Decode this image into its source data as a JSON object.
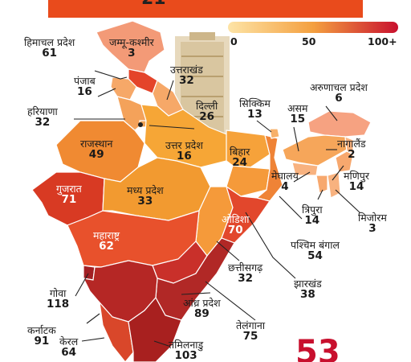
{
  "legend": {
    "ticks": [
      "0",
      "50",
      "100+"
    ],
    "color_low": "#fce3a2",
    "color_mid": "#f29b3c",
    "color_high": "#c8102e"
  },
  "states": [
    {
      "key": "himachal",
      "name": "हिमाचल प्रदेश",
      "value": "61"
    },
    {
      "key": "jk",
      "name": "जम्मू-कश्मीर",
      "value": "3"
    },
    {
      "key": "punjab",
      "name": "पंजाब",
      "value": "16"
    },
    {
      "key": "uttarakhand",
      "name": "उत्तराखंड",
      "value": "32"
    },
    {
      "key": "haryana",
      "name": "हरियाणा",
      "value": "32"
    },
    {
      "key": "delhi",
      "name": "दिल्ली",
      "value": "26"
    },
    {
      "key": "sikkim",
      "name": "सिक्किम",
      "value": "13"
    },
    {
      "key": "assam",
      "name": "असम",
      "value": "15"
    },
    {
      "key": "arunachal",
      "name": "अरुणाचल प्रदेश",
      "value": "6"
    },
    {
      "key": "rajasthan",
      "name": "राजस्थान",
      "value": "49"
    },
    {
      "key": "up",
      "name": "उत्तर प्रदेश",
      "value": "16"
    },
    {
      "key": "bihar",
      "name": "बिहार",
      "value": "24"
    },
    {
      "key": "nagaland",
      "name": "नागालैंड",
      "value": "2"
    },
    {
      "key": "meghalaya",
      "name": "मेघालय",
      "value": "4"
    },
    {
      "key": "manipur",
      "name": "मणिपुर",
      "value": "14"
    },
    {
      "key": "gujarat",
      "name": "गुजरात",
      "value": "71"
    },
    {
      "key": "mp",
      "name": "मध्य प्रदेश",
      "value": "33"
    },
    {
      "key": "tripura",
      "name": "त्रिपुरा",
      "value": "14"
    },
    {
      "key": "mizoram",
      "name": "मिजोरम",
      "value": "3"
    },
    {
      "key": "odisha",
      "name": "ओडिशा",
      "value": "70"
    },
    {
      "key": "maharashtra",
      "name": "महाराष्ट्र",
      "value": "62"
    },
    {
      "key": "wb",
      "name": "पश्चिम बंगाल",
      "value": "54"
    },
    {
      "key": "chhattisgarh",
      "name": "छत्तीसगढ़",
      "value": "32"
    },
    {
      "key": "jharkhand",
      "name": "झारखंड",
      "value": "38"
    },
    {
      "key": "goa",
      "name": "गोवा",
      "value": "118"
    },
    {
      "key": "ap",
      "name": "आंध्र प्रदेश",
      "value": "89"
    },
    {
      "key": "karnataka",
      "name": "कर्नाटक",
      "value": "91"
    },
    {
      "key": "telangana",
      "name": "तेलंगाना",
      "value": "75"
    },
    {
      "key": "kerala",
      "name": "केरल",
      "value": "64"
    },
    {
      "key": "tn",
      "name": "तमिलनाडु",
      "value": "103"
    }
  ],
  "total": "53"
}
